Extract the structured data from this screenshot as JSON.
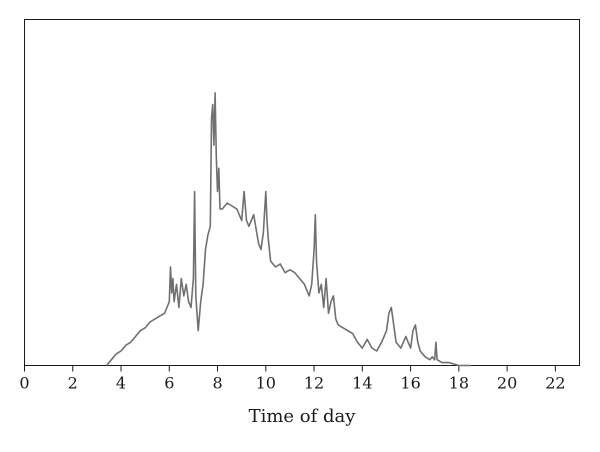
{
  "chart_data": {
    "type": "line",
    "title": "",
    "xlabel": "Time of day",
    "ylabel": "",
    "xlim": [
      0,
      23
    ],
    "ylim": [
      0,
      1
    ],
    "x_ticks": [
      0,
      2,
      4,
      6,
      8,
      10,
      12,
      14,
      16,
      18,
      20,
      22
    ],
    "x_tick_labels": [
      "0",
      "2",
      "4",
      "6",
      "8",
      "10",
      "12",
      "14",
      "16",
      "18",
      "20",
      "22"
    ],
    "y_ticks_shown": false,
    "grid": false,
    "legend": "none",
    "line_color": "#707070",
    "series": [
      {
        "x": [
          3.4,
          3.6,
          3.8,
          4.0,
          4.2,
          4.4,
          4.6,
          4.8,
          5.0,
          5.2,
          5.4,
          5.6,
          5.8,
          5.9,
          6.0,
          6.05,
          6.1,
          6.15,
          6.2,
          6.3,
          6.4,
          6.5,
          6.6,
          6.7,
          6.8,
          6.9,
          7.0,
          7.05,
          7.1,
          7.2,
          7.3,
          7.4,
          7.5,
          7.6,
          7.7,
          7.75,
          7.8,
          7.85,
          7.9,
          7.95,
          8.0,
          8.05,
          8.1,
          8.2,
          8.3,
          8.4,
          8.6,
          8.8,
          9.0,
          9.1,
          9.2,
          9.3,
          9.5,
          9.7,
          9.8,
          9.9,
          10.0,
          10.05,
          10.1,
          10.2,
          10.4,
          10.6,
          10.8,
          11.0,
          11.2,
          11.4,
          11.6,
          11.8,
          11.9,
          12.0,
          12.05,
          12.1,
          12.2,
          12.3,
          12.4,
          12.5,
          12.6,
          12.7,
          12.8,
          12.9,
          13.0,
          13.2,
          13.4,
          13.6,
          13.8,
          14.0,
          14.2,
          14.4,
          14.6,
          14.8,
          15.0,
          15.1,
          15.2,
          15.3,
          15.4,
          15.6,
          15.8,
          15.9,
          16.0,
          16.1,
          16.2,
          16.3,
          16.4,
          16.6,
          16.8,
          16.9,
          17.0,
          17.05,
          17.1,
          17.3,
          17.6,
          18.0,
          18.5
        ],
        "y": [
          0.0,
          0.02,
          0.04,
          0.05,
          0.07,
          0.08,
          0.1,
          0.12,
          0.13,
          0.15,
          0.16,
          0.17,
          0.18,
          0.2,
          0.22,
          0.34,
          0.25,
          0.3,
          0.22,
          0.28,
          0.2,
          0.3,
          0.24,
          0.28,
          0.22,
          0.2,
          0.3,
          0.6,
          0.24,
          0.12,
          0.22,
          0.28,
          0.4,
          0.45,
          0.48,
          0.85,
          0.9,
          0.76,
          0.94,
          0.72,
          0.6,
          0.68,
          0.54,
          0.54,
          0.55,
          0.56,
          0.55,
          0.54,
          0.5,
          0.6,
          0.5,
          0.48,
          0.52,
          0.42,
          0.4,
          0.46,
          0.6,
          0.5,
          0.44,
          0.36,
          0.34,
          0.35,
          0.32,
          0.33,
          0.32,
          0.3,
          0.28,
          0.24,
          0.28,
          0.4,
          0.52,
          0.36,
          0.25,
          0.28,
          0.2,
          0.3,
          0.18,
          0.22,
          0.24,
          0.16,
          0.14,
          0.13,
          0.12,
          0.11,
          0.08,
          0.06,
          0.09,
          0.06,
          0.05,
          0.08,
          0.12,
          0.18,
          0.2,
          0.14,
          0.08,
          0.06,
          0.1,
          0.08,
          0.06,
          0.12,
          0.14,
          0.08,
          0.05,
          0.03,
          0.02,
          0.03,
          0.02,
          0.08,
          0.02,
          0.01,
          0.01,
          0.0,
          0.0
        ]
      }
    ]
  }
}
